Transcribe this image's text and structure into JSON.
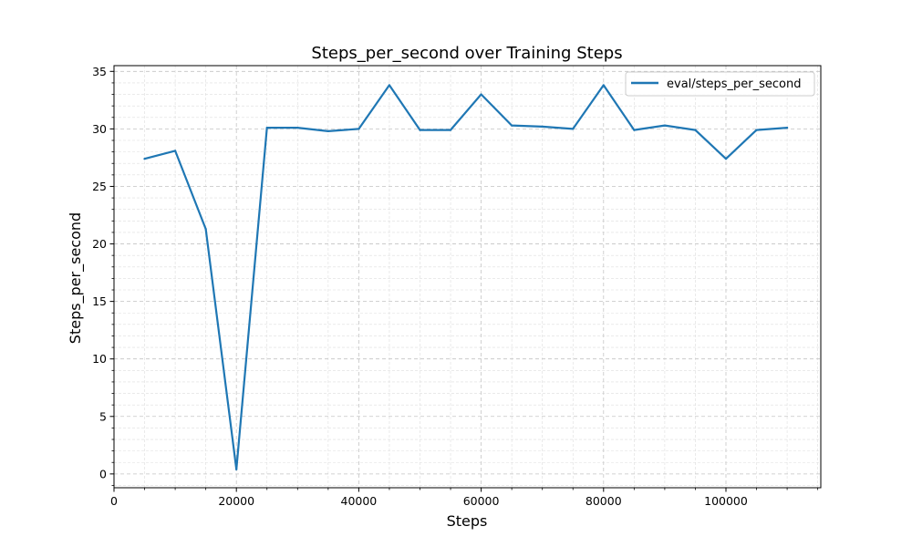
{
  "chart_data": {
    "type": "line",
    "title": "Steps_per_second over Training Steps",
    "xlabel": "Steps",
    "ylabel": "Steps_per_second",
    "xlim": [
      0,
      115500
    ],
    "ylim": [
      -1.2,
      35.5
    ],
    "xticks": [
      0,
      20000,
      40000,
      60000,
      80000,
      100000
    ],
    "xtick_labels": [
      "0",
      "20000",
      "40000",
      "60000",
      "80000",
      "100000"
    ],
    "yticks": [
      0,
      5,
      10,
      15,
      20,
      25,
      30,
      35
    ],
    "ytick_labels": [
      "0",
      "5",
      "10",
      "15",
      "20",
      "25",
      "30",
      "35"
    ],
    "grid": true,
    "legend_position": "top-right",
    "series": [
      {
        "name": "eval/steps_per_second",
        "color": "#1f77b4",
        "x": [
          5000,
          10000,
          15000,
          20000,
          25000,
          30000,
          35000,
          40000,
          45000,
          50000,
          55000,
          60000,
          65000,
          70000,
          75000,
          80000,
          85000,
          90000,
          95000,
          100000,
          105000,
          110000
        ],
        "y": [
          27.4,
          28.1,
          21.3,
          0.4,
          30.1,
          30.1,
          29.8,
          30.0,
          33.8,
          29.9,
          29.9,
          33.0,
          30.3,
          30.2,
          30.0,
          33.8,
          29.9,
          30.3,
          29.9,
          27.4,
          29.9,
          30.1
        ]
      }
    ]
  }
}
